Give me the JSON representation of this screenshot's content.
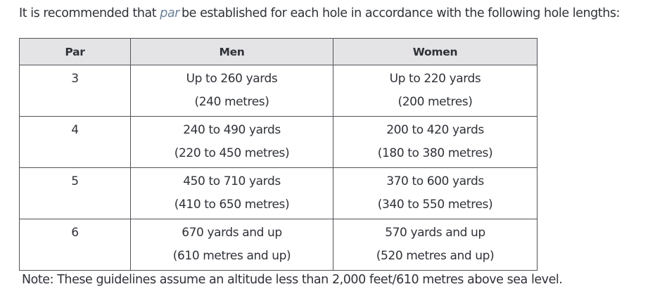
{
  "intro": {
    "before": "It is recommended that ",
    "term": "par",
    "after": "be established for each hole in accordance with the following hole lengths:"
  },
  "table": {
    "headers": [
      "Par",
      "Men",
      "Women"
    ],
    "rows": [
      {
        "par": "3",
        "men": [
          "Up to 260 yards",
          "(240 metres)"
        ],
        "women": [
          "Up to 220 yards",
          "(200 metres)"
        ]
      },
      {
        "par": "4",
        "men": [
          "240 to 490 yards",
          "(220 to 450 metres)"
        ],
        "women": [
          "200 to 420 yards",
          "(180 to 380 metres)"
        ]
      },
      {
        "par": "5",
        "men": [
          "450 to 710 yards",
          "(410 to 650 metres)"
        ],
        "women": [
          "370 to 600 yards",
          "(340 to 550 metres)"
        ]
      },
      {
        "par": "6",
        "men": [
          "670 yards and up",
          "(610 metres and up)"
        ],
        "women": [
          "570 yards and up",
          "(520 metres and up)"
        ]
      }
    ]
  },
  "note": "Note: These guidelines assume an altitude less than 2,000 feet/610 metres above sea level."
}
